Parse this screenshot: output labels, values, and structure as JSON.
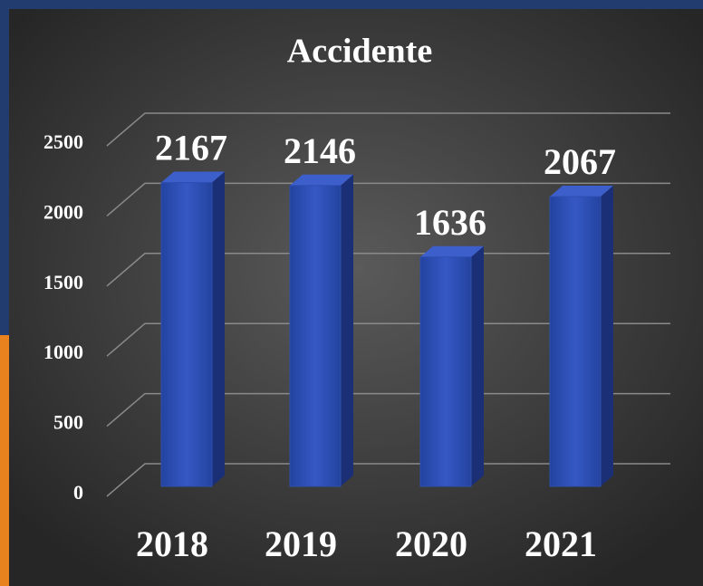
{
  "chart_data": {
    "type": "bar3d",
    "title": "Accidente",
    "categories": [
      "2018",
      "2019",
      "2020",
      "2021"
    ],
    "values": [
      2167,
      2146,
      1636,
      2067
    ],
    "color": "#2e4fb0",
    "ylim": [
      0,
      2500
    ],
    "yticks": [
      0,
      500,
      1000,
      1500,
      2000,
      2500
    ],
    "grid": true
  }
}
